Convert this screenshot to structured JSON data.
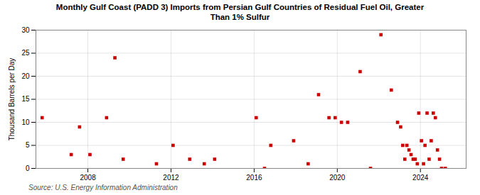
{
  "chart_data": {
    "type": "scatter",
    "title": "Monthly Gulf Coast (PADD 3) Imports from Persian Gulf Countries of Residual Fuel Oil, Greater\nThan 1% Sulfur",
    "ylabel": "Thousand Barrels per Day",
    "source": "Source: U.S. Energy Information Administration",
    "color": "#cc0000",
    "marker": "square",
    "grid": true,
    "xlim": [
      2005.5,
      2026.2
    ],
    "xticks": [
      2008,
      2012,
      2016,
      2020,
      2024
    ],
    "ylim": [
      0,
      30
    ],
    "yticks": [
      0,
      5,
      10,
      15,
      20,
      25,
      30
    ],
    "x": [
      2005.8,
      2007.2,
      2007.6,
      2008.1,
      2008.9,
      2009.3,
      2009.7,
      2011.3,
      2012.1,
      2012.9,
      2013.6,
      2014.1,
      2016.1,
      2016.5,
      2016.8,
      2017.9,
      2018.6,
      2019.1,
      2019.6,
      2019.9,
      2020.2,
      2020.5,
      2021.1,
      2021.6,
      2022.1,
      2022.6,
      2022.9,
      2023.05,
      2023.15,
      2023.25,
      2023.35,
      2023.45,
      2023.55,
      2023.65,
      2023.75,
      2023.85,
      2023.92,
      2024.05,
      2024.15,
      2024.22,
      2024.32,
      2024.42,
      2024.52,
      2024.62,
      2024.72,
      2024.82,
      2024.92,
      2025.02,
      2025.2
    ],
    "values": [
      11,
      3,
      9,
      3,
      11,
      24,
      2,
      1,
      5,
      2,
      1,
      2,
      11,
      0,
      5,
      6,
      1,
      16,
      11,
      11,
      10,
      10,
      21,
      0,
      29,
      17,
      10,
      9,
      5,
      2,
      5,
      4,
      3,
      2,
      2,
      1,
      12,
      6,
      1,
      5,
      12,
      2,
      6,
      12,
      11,
      4,
      2,
      0,
      0
    ]
  }
}
